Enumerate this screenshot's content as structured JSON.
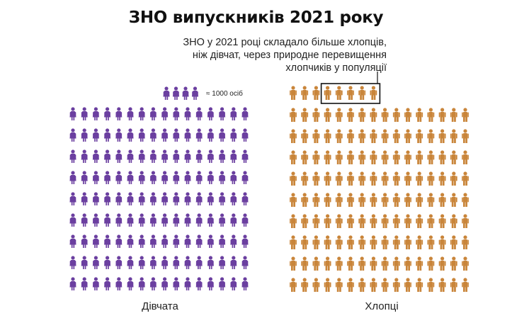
{
  "chart_data": {
    "type": "pictogram",
    "title": "ЗНО випускників 2021 року",
    "annotation": [
      "ЗНО у 2021 році складало більше хлопців,",
      "ніж дівчат, через природне перевищення",
      "хлопчиків у популяції"
    ],
    "legend": {
      "icon_count": 4,
      "label": "≈ 1000 осіб"
    },
    "unit_per_icon": 1000,
    "series": [
      {
        "name": "Дівчата",
        "rows": 9,
        "cols": 16,
        "color": "#6b3fa0"
      },
      {
        "name": "Хлопці",
        "rows": 9,
        "cols": 16,
        "extra": 8,
        "color": "#c9853a"
      }
    ]
  }
}
